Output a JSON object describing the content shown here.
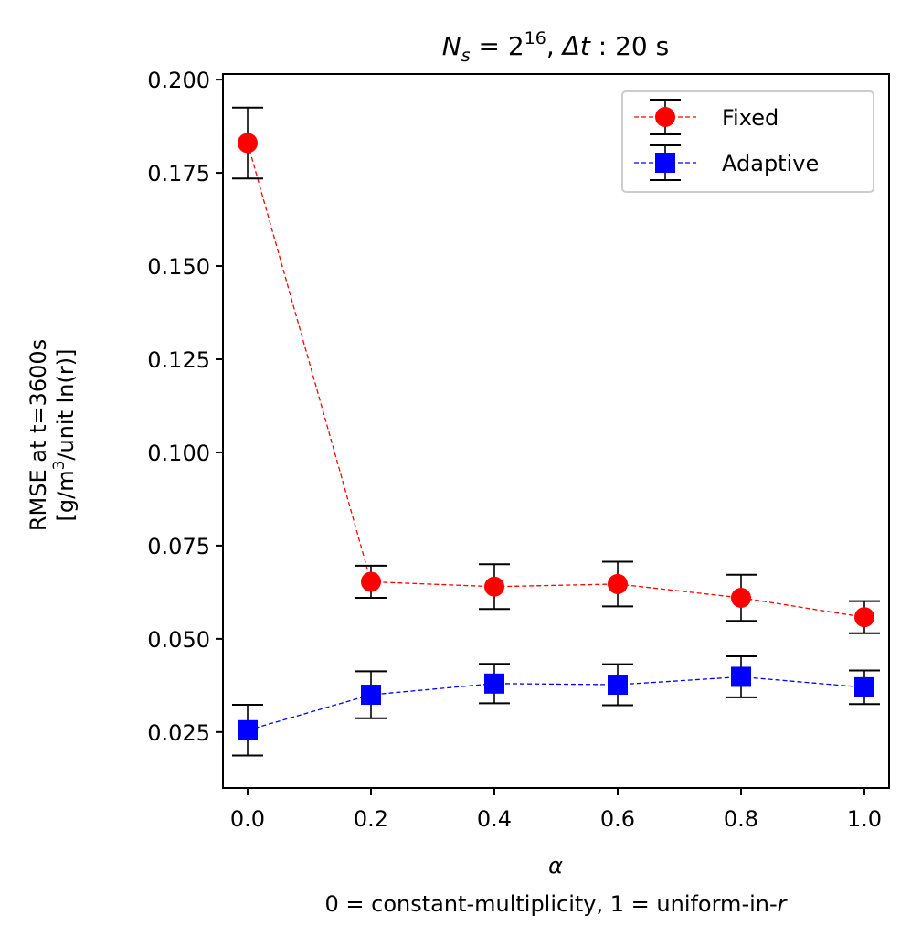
{
  "chart_data": {
    "type": "scatter",
    "title": {
      "n_symbol": "N",
      "n_sub": "s",
      "eq": " = 2",
      "exp": "16",
      "sep": ", ",
      "dt_symbol": "Δt",
      "dt_value": " : 20 s"
    },
    "xlabel": {
      "symbol": "α",
      "note_prefix": "0 = constant-multiplicity, 1 = uniform-in-",
      "note_var": "r"
    },
    "ylabel": {
      "line1": "RMSE at t=3600s",
      "line2_a": "[g/m",
      "line2_sup": "3",
      "line2_b": "/unit ln(r)]"
    },
    "xlim": [
      -0.04,
      1.04
    ],
    "ylim": [
      0.01,
      0.2015
    ],
    "xticks": [
      0.0,
      0.2,
      0.4,
      0.6,
      0.8,
      1.0
    ],
    "xtick_labels": [
      "0.0",
      "0.2",
      "0.4",
      "0.6",
      "0.8",
      "1.0"
    ],
    "yticks": [
      0.025,
      0.05,
      0.075,
      0.1,
      0.125,
      0.15,
      0.175,
      0.2
    ],
    "ytick_labels": [
      "0.025",
      "0.050",
      "0.075",
      "0.100",
      "0.125",
      "0.150",
      "0.175",
      "0.200"
    ],
    "legend_position": "top-right",
    "series": [
      {
        "name": "Fixed",
        "color": "#ff0000",
        "marker": "circle",
        "x": [
          0.0,
          0.2,
          0.4,
          0.6,
          0.8,
          1.0
        ],
        "y": [
          0.183,
          0.0653,
          0.064,
          0.0647,
          0.061,
          0.0558
        ],
        "err": [
          0.0095,
          0.0043,
          0.006,
          0.006,
          0.0062,
          0.0043
        ]
      },
      {
        "name": "Adaptive",
        "color": "#0000ff",
        "marker": "square",
        "x": [
          0.0,
          0.2,
          0.4,
          0.6,
          0.8,
          1.0
        ],
        "y": [
          0.0255,
          0.035,
          0.038,
          0.0377,
          0.0398,
          0.037
        ],
        "err": [
          0.0068,
          0.0063,
          0.0053,
          0.0055,
          0.0055,
          0.0045
        ]
      }
    ]
  }
}
